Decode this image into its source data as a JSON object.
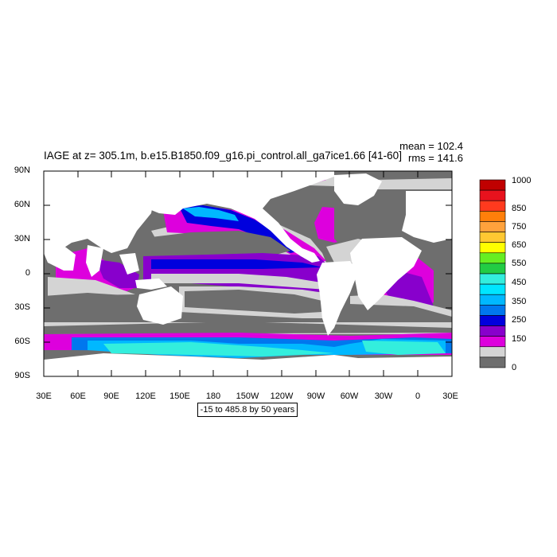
{
  "title": "IAGE at z= 305.1m, b.e15.B1850.f09_g16.pi_control.all_ga7ice1.66 [41-60]",
  "stats": {
    "mean": "mean = 102.4",
    "rms": "rms = 141.6"
  },
  "range_label": "-15 to 485.8 by 50 years",
  "lat_labels": [
    "90N",
    "60N",
    "30N",
    "0",
    "30S",
    "60S",
    "90S"
  ],
  "lon_labels": [
    "30E",
    "60E",
    "90E",
    "120E",
    "150E",
    "180",
    "150W",
    "120W",
    "90W",
    "60W",
    "30W",
    "0",
    "30E"
  ],
  "colorbar": {
    "labels": [
      "1000",
      "850",
      "750",
      "650",
      "550",
      "450",
      "350",
      "250",
      "150",
      "0"
    ],
    "colors": [
      "#c00000",
      "#e8121d",
      "#ff3a1e",
      "#ff7f0a",
      "#ffa23c",
      "#ffc832",
      "#ffff00",
      "#66ee22",
      "#22cc44",
      "#33eedd",
      "#00e5ff",
      "#00b8ff",
      "#0077ee",
      "#0000dd",
      "#8800cc",
      "#dd00dd",
      "#d4d4d4",
      "#6e6e6e"
    ]
  },
  "map_colors": {
    "land": "#ffffff",
    "low": "#6e6e6e",
    "light": "#d4d4d4",
    "magenta": "#dd00dd",
    "purple": "#8800cc",
    "blue": "#0000dd",
    "sky": "#00b8ff",
    "cyan": "#33eedd"
  }
}
